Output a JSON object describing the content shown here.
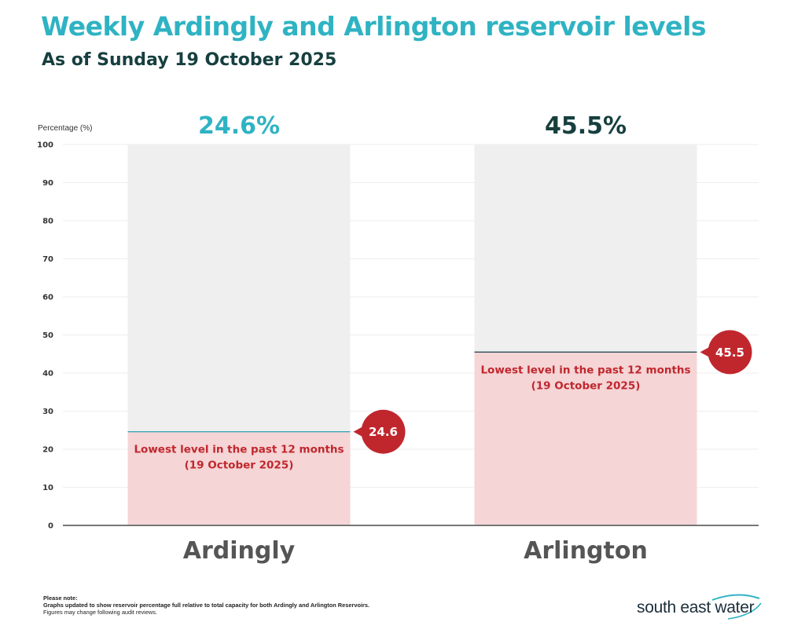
{
  "title": "Weekly Ardingly and Arlington reservoir levels",
  "subtitle": "As of Sunday 19 October 2025",
  "colors": {
    "title": "#2fb3c3",
    "subtitle": "#173f3f",
    "capacity": "#efefef",
    "fill": "#f5d5d6",
    "marker": "#c0272d",
    "label_red": "#c0272d",
    "axis": "#777777",
    "category": "#555555",
    "ardingly_top": "#2fb3c3",
    "arlington_top": "#173f3f"
  },
  "chart_data": {
    "type": "bar",
    "ylabel": "Percentage (%)",
    "ylim": [
      0,
      100
    ],
    "yticks": [
      "0",
      "10",
      "20",
      "30",
      "40",
      "50",
      "60",
      "70",
      "80",
      "90",
      "100"
    ],
    "categories": [
      "Ardingly",
      "Arlington"
    ],
    "values": [
      24.6,
      45.5
    ],
    "top_labels": [
      "24.6%",
      "45.5%"
    ],
    "marker_labels": [
      "24.6",
      "45.5"
    ],
    "annotation_line1": "Lowest level in the past 12 months",
    "annotation_line2": "(19 October 2025)"
  },
  "note": {
    "heading": "Please note:",
    "line1": "Graphs updated to show reservoir percentage full relative to total capacity for both Ardingly and Arlington Reservoirs.",
    "line2": "Figures may change following audit reviews."
  },
  "logo": {
    "text": "south east water",
    "icon": "wave-icon"
  }
}
